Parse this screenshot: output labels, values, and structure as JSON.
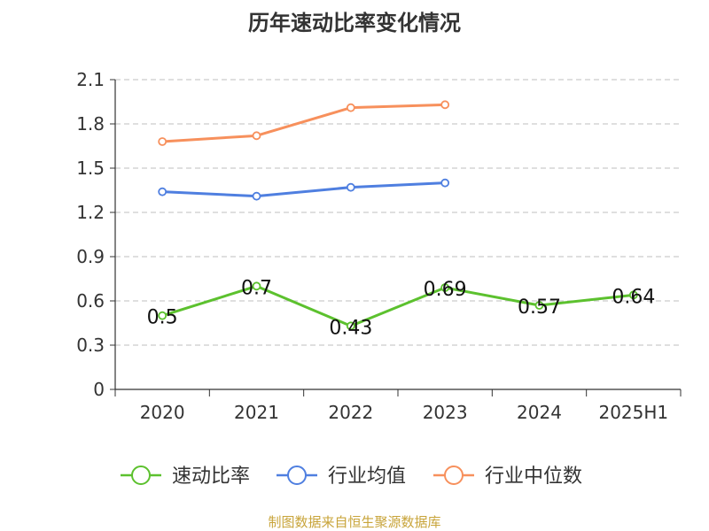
{
  "chart_data": {
    "type": "line",
    "title": "历年速动比率变化情况",
    "categories": [
      "2020",
      "2021",
      "2022",
      "2023",
      "2024",
      "2025H1"
    ],
    "y_ticks": [
      "0",
      "0.3",
      "0.6",
      "0.9",
      "1.2",
      "1.5",
      "1.8",
      "2.1"
    ],
    "ylim": [
      0,
      2.1
    ],
    "grid": true,
    "legend_position": "bottom",
    "series": [
      {
        "name": "速动比率",
        "color": "#5cc12e",
        "values": [
          0.5,
          0.7,
          0.43,
          0.69,
          0.57,
          0.64
        ],
        "labels": [
          "0.5",
          "0.7",
          "0.43",
          "0.69",
          "0.57",
          "0.64"
        ]
      },
      {
        "name": "行业均值",
        "color": "#4f7fe0",
        "values": [
          1.34,
          1.31,
          1.37,
          1.4,
          null,
          null
        ]
      },
      {
        "name": "行业中位数",
        "color": "#f7905c",
        "values": [
          1.68,
          1.72,
          1.91,
          1.93,
          null,
          null
        ]
      }
    ],
    "source": "制图数据来自恒生聚源数据库"
  }
}
